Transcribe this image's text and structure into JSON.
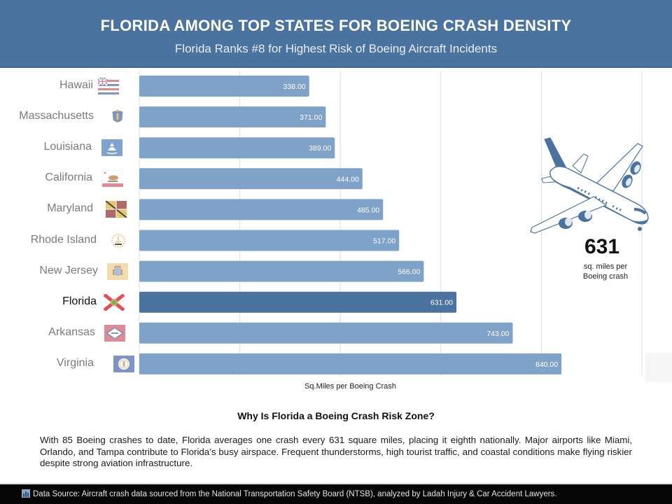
{
  "header": {
    "title": "FLORIDA AMONG TOP STATES FOR BOEING CRASH DENSITY",
    "subtitle": "Florida Ranks #8 for Highest Risk of Boeing Aircraft Incidents"
  },
  "colors": {
    "header_bg": "#4a73a0",
    "bar": "#7fa3c8",
    "bar_highlight": "#4a73a0",
    "gridline": "#dddddd",
    "label": "#7b7b7b",
    "label_highlight": "#111111",
    "footer_bg": "#050505"
  },
  "chart_data": {
    "type": "bar",
    "orientation": "horizontal",
    "title": "FLORIDA AMONG TOP STATES FOR BOEING CRASH DENSITY",
    "subtitle": "Florida Ranks #8 for Highest Risk of Boeing Aircraft Incidents",
    "xlabel": "Sq.Miles per Boeing Crash",
    "ylabel": "",
    "xlim": [
      0,
      1000
    ],
    "gridlines_at": [
      200,
      400,
      600,
      800,
      1000
    ],
    "grid": true,
    "value_format": "2 decimals",
    "highlight": "Florida",
    "categories": [
      "Hawaii",
      "Massachusetts",
      "Louisiana",
      "California",
      "Maryland",
      "Rhode Island",
      "New Jersey",
      "Florida",
      "Arkansas",
      "Virginia"
    ],
    "values": [
      338,
      371,
      389,
      444,
      485,
      517,
      566,
      631,
      743,
      840
    ],
    "value_labels": [
      "338.00",
      "371.00",
      "389.00",
      "444.00",
      "485.00",
      "517.00",
      "566.00",
      "631.00",
      "743.00",
      "840.00"
    ],
    "flags": [
      "hawaii-flag",
      "massachusetts-flag",
      "louisiana-flag",
      "california-flag",
      "maryland-flag",
      "rhode-island-flag",
      "new-jersey-flag",
      "florida-flag",
      "arkansas-flag",
      "virginia-flag"
    ]
  },
  "callout": {
    "icon": "airplane-icon",
    "number": "631",
    "caption_line1": "sq. miles per",
    "caption_line2": "Boeing crash"
  },
  "section": {
    "title": "Why Is Florida a Boeing Crash Risk Zone?",
    "body": "With 85 Boeing crashes to date, Florida averages one crash every 631 square miles, placing it eighth nationally. Major airports like Miami, Orlando, and Tampa contribute to Florida’s busy airspace. Frequent thunderstorms, high tourist traffic, and coastal conditions make flying riskier despite strong aviation infrastructure."
  },
  "footer": {
    "icon": "bar-chart-icon",
    "text": "Data Source: Aircraft crash data sourced from the National Transportation Safety Board (NTSB), analyzed by Ladah Injury & Car Accident Lawyers."
  }
}
